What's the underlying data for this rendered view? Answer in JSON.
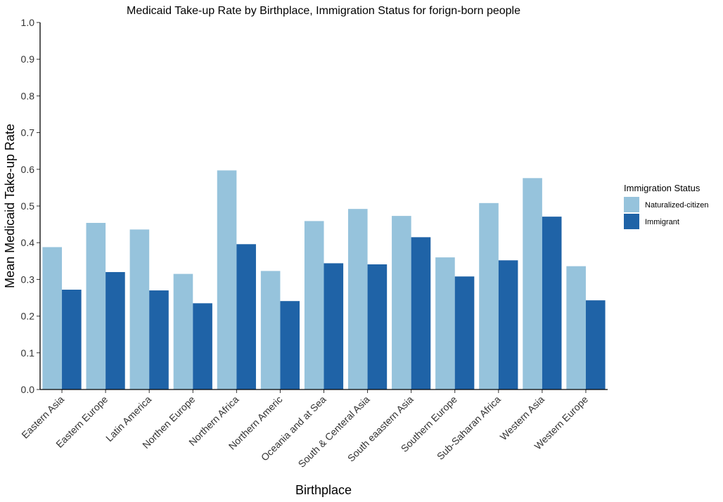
{
  "chart_data": {
    "type": "bar",
    "title": "Medicaid Take-up Rate by Birthplace, Immigration Status for forign-born people",
    "xlabel": "Birthplace",
    "ylabel": "Mean Medicaid Take-up Rate",
    "ylim": [
      0,
      1.0
    ],
    "yticks": [
      "0.0",
      "0.1",
      "0.2",
      "0.3",
      "0.4",
      "0.5",
      "0.6",
      "0.7",
      "0.8",
      "0.9",
      "1.0"
    ],
    "grid": false,
    "legend_position": "right",
    "legend_title": "Immigration Status",
    "categories": [
      "Eastern Asia",
      "Eastern Europe",
      "Latin America",
      "Northen Europe",
      "Northern Africa",
      "Northern Americ",
      "Oceania and at Sea",
      "South  & Centeral Asia",
      "South eaastern Asia",
      "Southern Europe",
      "Sub-Saharan Africa",
      "Western Asia",
      "Western Europe"
    ],
    "series": [
      {
        "name": "Naturalized-citizen",
        "color": "#96c3dc",
        "values": [
          0.388,
          0.454,
          0.436,
          0.315,
          0.597,
          0.323,
          0.459,
          0.492,
          0.473,
          0.36,
          0.508,
          0.576,
          0.336
        ]
      },
      {
        "name": "Immigrant",
        "color": "#1f63a7",
        "values": [
          0.272,
          0.32,
          0.27,
          0.235,
          0.396,
          0.241,
          0.344,
          0.341,
          0.415,
          0.308,
          0.352,
          0.471,
          0.243
        ]
      }
    ]
  }
}
